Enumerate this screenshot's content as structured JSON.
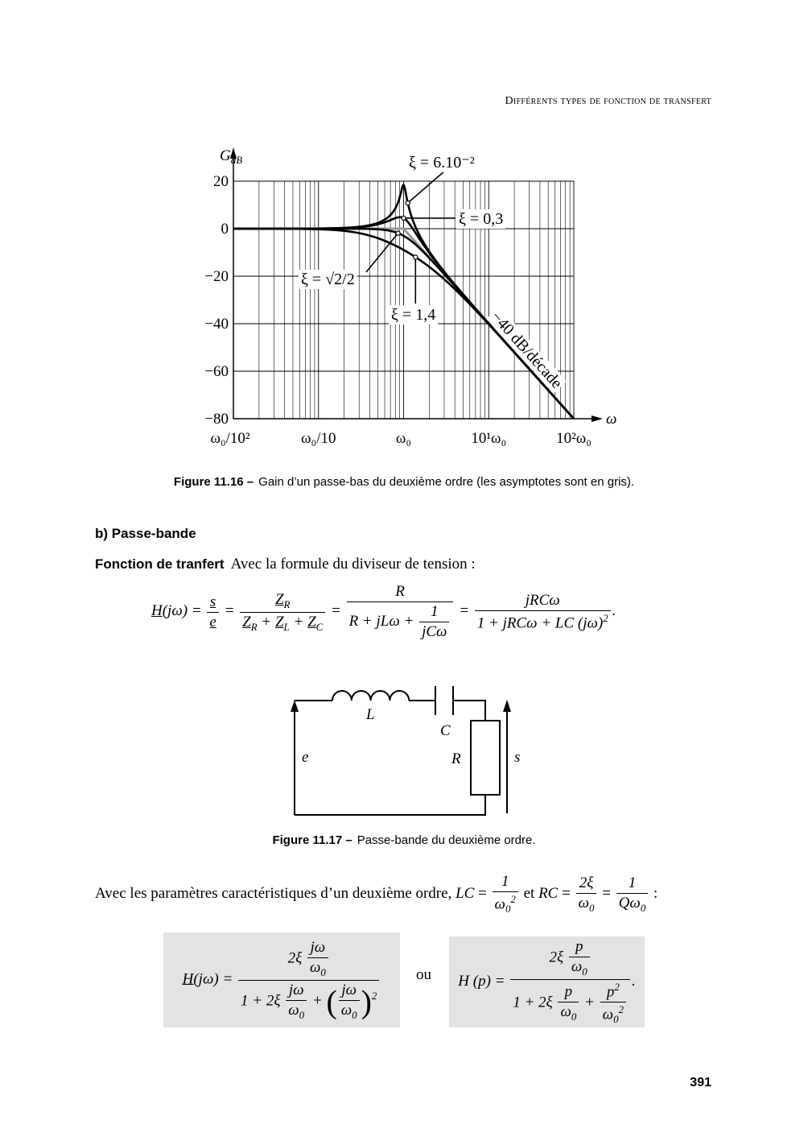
{
  "header": {
    "running_title": "Différents types de fonction de transfert"
  },
  "figure_16": {
    "chart_data": {
      "type": "line",
      "y_label": {
        "text": "G",
        "sub": "dB"
      },
      "x_label": "ω",
      "x_log": true,
      "xlim": [
        0.01,
        100
      ],
      "ylim": [
        -80,
        20
      ],
      "xticks": [
        {
          "value": 0.01,
          "label": "ω₀/10²"
        },
        {
          "value": 0.1,
          "label": "ω₀/10"
        },
        {
          "value": 1,
          "label": "ω₀"
        },
        {
          "value": 10,
          "label": "10¹ω₀"
        },
        {
          "value": 100,
          "label": "10²ω₀"
        }
      ],
      "yticks": [
        {
          "value": -80,
          "label": "−80"
        },
        {
          "value": -60,
          "label": "−60"
        },
        {
          "value": -40,
          "label": "−40"
        },
        {
          "value": -20,
          "label": "−20"
        },
        0,
        20
      ],
      "grid": true,
      "series": [
        {
          "name": "ξ = 6.10⁻²",
          "color": "#000000",
          "damping": 0.06
        },
        {
          "name": "ξ = 0,3",
          "color": "#000000",
          "damping": 0.3
        },
        {
          "name": "ξ = √2/2",
          "color": "#000000",
          "damping": 0.7071
        },
        {
          "name": "ξ = 1,4",
          "color": "#000000",
          "damping": 1.4
        }
      ],
      "asymptote": {
        "label": "−40 dB/décade",
        "slope": -40,
        "color": "#999999"
      }
    },
    "caption": {
      "label": "Figure 11.16 –",
      "text": "Gain d’un passe-bas du deuxième ordre (les asymptotes sont en gris)."
    }
  },
  "section": {
    "title": "b) Passe-bande"
  },
  "paragraph_1": {
    "lead": "Fonction de tranfert",
    "text": "Avec la formule du diviseur de tension :"
  },
  "equation_1": [
    {
      "ul": "H"
    },
    "(jω) = ",
    {
      "num": [
        {
          "ul": "s"
        }
      ],
      "den": [
        {
          "ul": "e"
        }
      ]
    },
    " = ",
    {
      "num": [
        {
          "ul": "Z"
        },
        {
          "sub": "R"
        }
      ],
      "den": [
        {
          "ul": "Z"
        },
        {
          "sub": "R"
        },
        " + ",
        {
          "ul": "Z"
        },
        {
          "sub": "L"
        },
        " + ",
        {
          "ul": "Z"
        },
        {
          "sub": "C"
        }
      ]
    },
    " = ",
    {
      "num": [
        "R"
      ],
      "den": [
        "R + jLω + ",
        {
          "num": [
            "1"
          ],
          "den": [
            "jCω"
          ]
        }
      ]
    },
    " = ",
    {
      "num": [
        "jRCω"
      ],
      "den": [
        "1 + jRCω + LC (jω)",
        {
          "sup": "2"
        }
      ]
    },
    "."
  ],
  "figure_17": {
    "circuit": {
      "inductor": "L",
      "capacitor": "C",
      "resistor": "R",
      "input": "e",
      "output": "s"
    },
    "caption": {
      "label": "Figure 11.17 –",
      "text": "Passe-bande du deuxième ordre."
    }
  },
  "paragraph_2": [
    "Avec les paramètres caractéristiques d’un deuxième ordre, ",
    {
      "i": "LC"
    },
    " = ",
    {
      "num": [
        "1"
      ],
      "den": [
        "ω",
        {
          "sub": "0"
        },
        {
          "sup": "2"
        }
      ]
    },
    " et ",
    {
      "i": "RC"
    },
    " = ",
    {
      "num": [
        "2ξ"
      ],
      "den": [
        "ω",
        {
          "sub": "0"
        }
      ]
    },
    " = ",
    {
      "num": [
        "1"
      ],
      "den": [
        "Qω",
        {
          "sub": "0"
        }
      ]
    },
    " :"
  ],
  "equation_2": [
    {
      "ul": "H"
    },
    "(jω) = ",
    {
      "num": [
        "2ξ ",
        {
          "num": [
            "jω"
          ],
          "den": [
            "ω",
            {
              "sub": "0"
            }
          ]
        }
      ],
      "den": [
        "1 + 2ξ ",
        {
          "num": [
            "jω"
          ],
          "den": [
            "ω",
            {
              "sub": "0"
            }
          ]
        },
        " + ",
        {
          "big": "("
        },
        {
          "num": [
            "jω"
          ],
          "den": [
            "ω",
            {
              "sub": "0"
            }
          ]
        },
        {
          "big": ")"
        },
        {
          "sup": "2"
        }
      ]
    }
  ],
  "connector": "ou",
  "equation_3": [
    "H (p) = ",
    {
      "num": [
        "2ξ ",
        {
          "num": [
            "p"
          ],
          "den": [
            "ω",
            {
              "sub": "0"
            }
          ]
        }
      ],
      "den": [
        "1 + 2ξ ",
        {
          "num": [
            "p"
          ],
          "den": [
            "ω",
            {
              "sub": "0"
            }
          ]
        },
        " + ",
        {
          "num": [
            "p",
            {
              "sup": "2"
            }
          ],
          "den": [
            "ω",
            {
              "sub": "0"
            },
            {
              "sup": "2"
            }
          ]
        }
      ]
    },
    "."
  ],
  "footer": {
    "page_number": "391"
  }
}
